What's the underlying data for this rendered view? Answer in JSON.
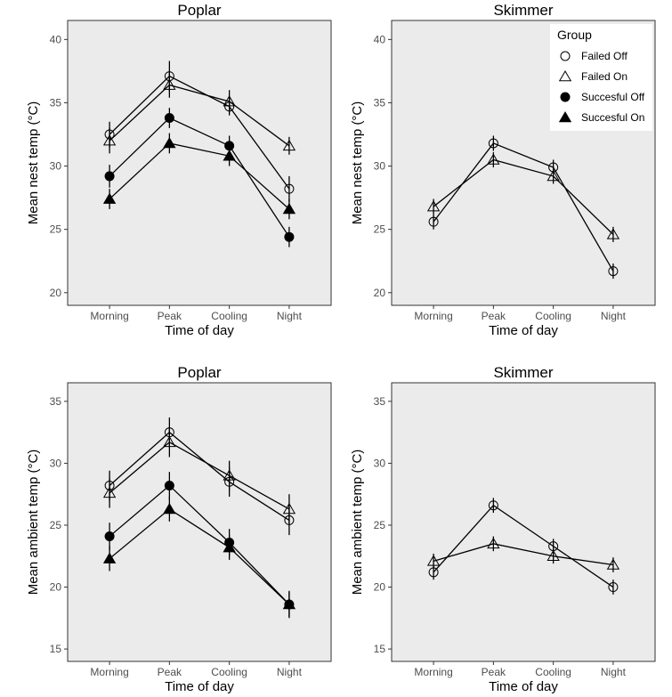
{
  "chart_data": [
    {
      "type": "line",
      "title": "Poplar",
      "xlabel": "Time of day",
      "ylabel": "Mean nest temp (°C)",
      "categories": [
        "Morning",
        "Peak",
        "Cooling",
        "Night"
      ],
      "ylim": [
        19,
        41.5
      ],
      "yticks": [
        20,
        25,
        30,
        35,
        40
      ],
      "grid": false,
      "series": [
        {
          "name": "Failed Off",
          "values": [
            32.5,
            37.1,
            34.7,
            28.2
          ],
          "errors": [
            1.0,
            1.2,
            0.7,
            1.0
          ]
        },
        {
          "name": "Failed On",
          "values": [
            32.0,
            36.4,
            35.1,
            31.6
          ],
          "errors": [
            1.0,
            1.0,
            0.9,
            0.7
          ]
        },
        {
          "name": "Succesful Off",
          "values": [
            29.2,
            33.8,
            31.6,
            24.4
          ],
          "errors": [
            0.9,
            0.8,
            0.8,
            0.8
          ]
        },
        {
          "name": "Succesful On",
          "values": [
            27.4,
            31.8,
            30.8,
            26.6
          ],
          "errors": [
            0.8,
            0.8,
            0.8,
            0.8
          ]
        }
      ]
    },
    {
      "type": "line",
      "title": "Skimmer",
      "xlabel": "Time of day",
      "ylabel": "Mean nest temp (°C)",
      "categories": [
        "Morning",
        "Peak",
        "Cooling",
        "Night"
      ],
      "ylim": [
        19,
        41.5
      ],
      "yticks": [
        20,
        25,
        30,
        35,
        40
      ],
      "grid": false,
      "series": [
        {
          "name": "Failed Off",
          "values": [
            25.6,
            31.8,
            29.9,
            21.7
          ],
          "errors": [
            0.6,
            0.6,
            0.6,
            0.6
          ]
        },
        {
          "name": "Failed On",
          "values": [
            26.8,
            30.5,
            29.2,
            24.6
          ],
          "errors": [
            0.6,
            0.6,
            0.6,
            0.6
          ]
        }
      ]
    },
    {
      "type": "line",
      "title": "Poplar",
      "xlabel": "Time of day",
      "ylabel": "Mean ambient temp (°C)",
      "categories": [
        "Morning",
        "Peak",
        "Cooling",
        "Night"
      ],
      "ylim": [
        14,
        36.5
      ],
      "yticks": [
        15,
        20,
        25,
        30,
        35
      ],
      "grid": false,
      "series": [
        {
          "name": "Failed Off",
          "values": [
            28.2,
            32.5,
            28.5,
            25.4
          ],
          "errors": [
            1.2,
            1.2,
            1.2,
            1.2
          ]
        },
        {
          "name": "Failed On",
          "values": [
            27.6,
            31.7,
            29.0,
            26.3
          ],
          "errors": [
            1.2,
            1.2,
            1.2,
            1.2
          ]
        },
        {
          "name": "Succesful Off",
          "values": [
            24.1,
            28.2,
            23.6,
            18.6
          ],
          "errors": [
            1.1,
            1.1,
            1.1,
            1.1
          ]
        },
        {
          "name": "Succesful On",
          "values": [
            22.3,
            26.3,
            23.2,
            18.6
          ],
          "errors": [
            1.0,
            1.0,
            1.0,
            1.0
          ]
        }
      ]
    },
    {
      "type": "line",
      "title": "Skimmer",
      "xlabel": "Time of day",
      "ylabel": "Mean ambient temp (°C)",
      "categories": [
        "Morning",
        "Peak",
        "Cooling",
        "Night"
      ],
      "ylim": [
        14,
        36.5
      ],
      "yticks": [
        15,
        20,
        25,
        30,
        35
      ],
      "grid": false,
      "series": [
        {
          "name": "Failed Off",
          "values": [
            21.2,
            26.6,
            23.3,
            20.0
          ],
          "errors": [
            0.6,
            0.6,
            0.6,
            0.6
          ]
        },
        {
          "name": "Failed On",
          "values": [
            22.1,
            23.5,
            22.5,
            21.8
          ],
          "errors": [
            0.6,
            0.6,
            0.6,
            0.6
          ]
        }
      ]
    }
  ],
  "legend": {
    "title": "Group",
    "placement": "top-right",
    "entries": [
      {
        "label": "Failed Off",
        "marker": "open-circle"
      },
      {
        "label": "Failed On",
        "marker": "open-triangle"
      },
      {
        "label": "Succesful Off",
        "marker": "filled-circle"
      },
      {
        "label": "Succesful On",
        "marker": "filled-triangle"
      }
    ]
  },
  "colors": {
    "panel_background": "#ebebeb",
    "panel_border": "#333333",
    "line": "#000000",
    "tick_text": "#4d4d4d"
  }
}
